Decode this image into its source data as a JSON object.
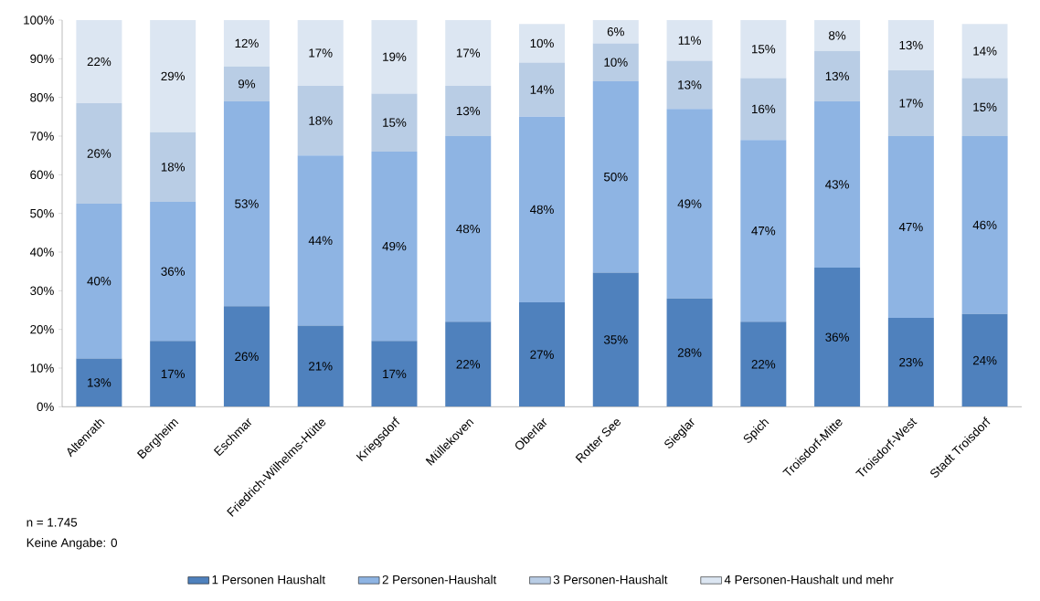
{
  "chart_data": {
    "type": "bar",
    "stacked": true,
    "categories": [
      "Altenrath",
      "Bergheim",
      "Eschmar",
      "Friedrich-Wilhelms-Hütte",
      "Kriegsdorf",
      "Müllekoven",
      "Oberlar",
      "Rotter See",
      "Sieglar",
      "Spich",
      "Troisdorf-Mitte",
      "Troisdorf-West",
      "Stadt Troisdorf"
    ],
    "series": [
      {
        "name": "1 Personen Haushalt",
        "color": "#4f81bd",
        "values": [
          12.5,
          17,
          26,
          21,
          17,
          22,
          27,
          34.7,
          28,
          22,
          36,
          23,
          24
        ],
        "value_labels": [
          "13%",
          "17%",
          "26%",
          "21%",
          "17%",
          "22%",
          "27%",
          "35%",
          "28%",
          "22%",
          "36%",
          "23%",
          "24%"
        ]
      },
      {
        "name": "2 Personen-Haushalt",
        "color": "#8eb4e3",
        "values": [
          40,
          36,
          53,
          44,
          49,
          48,
          48,
          49.5,
          49,
          47,
          43,
          47,
          46
        ],
        "value_labels": [
          "40%",
          "36%",
          "53%",
          "44%",
          "49%",
          "48%",
          "48%",
          "50%",
          "49%",
          "47%",
          "43%",
          "47%",
          "46%"
        ]
      },
      {
        "name": "3 Personen-Haushalt",
        "color": "#b9cde5",
        "values": [
          26,
          18,
          9,
          18,
          15,
          13,
          14,
          9.8,
          12.5,
          16,
          13,
          17,
          15
        ],
        "value_labels": [
          "26%",
          "18%",
          "9%",
          "18%",
          "15%",
          "13%",
          "14%",
          "10%",
          "13%",
          "16%",
          "13%",
          "17%",
          "15%"
        ]
      },
      {
        "name": "4  Personen-Haushalt und mehr",
        "color": "#dce6f2",
        "values": [
          21.5,
          29,
          12,
          17,
          19,
          17,
          10,
          6,
          10.5,
          15,
          8,
          13,
          14
        ],
        "value_labels": [
          "22%",
          "29%",
          "12%",
          "17%",
          "19%",
          "17%",
          "10%",
          "6%",
          "11%",
          "15%",
          "8%",
          "13%",
          "14%"
        ]
      }
    ],
    "ylim": [
      0,
      100
    ],
    "yticks": [
      {
        "value": 0,
        "label": "0%"
      },
      {
        "value": 10,
        "label": "10%"
      },
      {
        "value": 20,
        "label": "20%"
      },
      {
        "value": 30,
        "label": "30%"
      },
      {
        "value": 40,
        "label": "40%"
      },
      {
        "value": 50,
        "label": "50%"
      },
      {
        "value": 60,
        "label": "60%"
      },
      {
        "value": 70,
        "label": "70%"
      },
      {
        "value": 80,
        "label": "80%"
      },
      {
        "value": 90,
        "label": "90%"
      },
      {
        "value": 100,
        "label": "100%"
      }
    ],
    "legend": "bottom",
    "annotations": [
      "n = 1.745",
      "Keine Angabe: 0"
    ]
  }
}
